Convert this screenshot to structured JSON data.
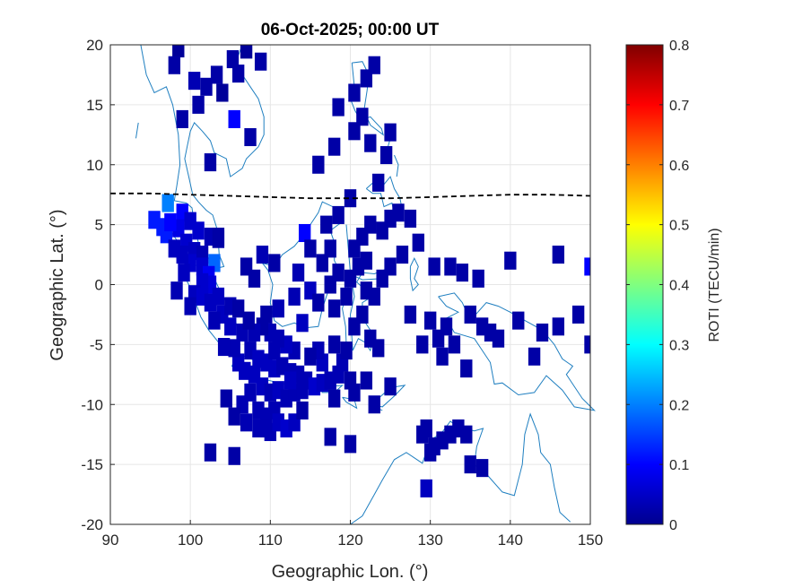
{
  "chart_data": {
    "type": "heatmap",
    "title": "06-Oct-2025; 00:00 UT",
    "xlabel": "Geographic Lon. (°)",
    "ylabel": "Geographic Lat. (°)",
    "xlim": [
      90,
      150
    ],
    "ylim": [
      -20,
      20
    ],
    "xticks": [
      "90",
      "100",
      "110",
      "120",
      "130",
      "140",
      "150"
    ],
    "yticks": [
      "-20",
      "-15",
      "-10",
      "-5",
      "0",
      "5",
      "10",
      "15",
      "20"
    ],
    "grid": true,
    "colormap": "jet",
    "colorbar": {
      "label": "ROTI (TECU/min)",
      "range": [
        0,
        0.8
      ],
      "ticks": [
        "0",
        "0.1",
        "0.2",
        "0.3",
        "0.4",
        "0.5",
        "0.6",
        "0.7",
        "0.8"
      ]
    },
    "dip_equator": [
      [
        90,
        7.6
      ],
      [
        95,
        7.6
      ],
      [
        100,
        7.5
      ],
      [
        105,
        7.4
      ],
      [
        110,
        7.3
      ],
      [
        115,
        7.2
      ],
      [
        120,
        7.2
      ],
      [
        125,
        7.2
      ],
      [
        130,
        7.3
      ],
      [
        135,
        7.4
      ],
      [
        140,
        7.5
      ],
      [
        145,
        7.5
      ],
      [
        150,
        7.4
      ]
    ],
    "cells": [
      [
        98.5,
        19.7,
        0.02
      ],
      [
        98.0,
        18.3,
        0.03
      ],
      [
        100.5,
        17.0,
        0.04
      ],
      [
        102.0,
        16.5,
        0.03
      ],
      [
        103.3,
        17.5,
        0.03
      ],
      [
        104.0,
        16.0,
        0.02
      ],
      [
        105.3,
        18.8,
        0.03
      ],
      [
        106.0,
        17.6,
        0.03
      ],
      [
        107.0,
        19.6,
        0.02
      ],
      [
        108.8,
        18.6,
        0.03
      ],
      [
        101.0,
        15.0,
        0.03
      ],
      [
        99.0,
        13.8,
        0.03
      ],
      [
        105.5,
        13.8,
        0.1
      ],
      [
        107.5,
        12.3,
        0.03
      ],
      [
        102.5,
        10.2,
        0.03
      ],
      [
        123.0,
        18.3,
        0.03
      ],
      [
        122.0,
        17.2,
        0.03
      ],
      [
        120.5,
        16.0,
        0.03
      ],
      [
        118.5,
        14.8,
        0.03
      ],
      [
        121.5,
        14.0,
        0.03
      ],
      [
        120.5,
        12.8,
        0.03
      ],
      [
        118.0,
        11.5,
        0.03
      ],
      [
        116.0,
        10.0,
        0.03
      ],
      [
        122.5,
        11.8,
        0.03
      ],
      [
        125.0,
        12.7,
        0.03
      ],
      [
        124.5,
        10.8,
        0.03
      ],
      [
        123.5,
        8.5,
        0.03
      ],
      [
        120.0,
        7.2,
        0.03
      ],
      [
        95.5,
        5.4,
        0.12
      ],
      [
        97.2,
        6.8,
        0.2
      ],
      [
        99.0,
        6.0,
        0.1
      ],
      [
        100.0,
        5.3,
        0.06
      ],
      [
        98.5,
        4.7,
        0.08
      ],
      [
        97.0,
        4.2,
        0.12
      ],
      [
        101.0,
        4.5,
        0.06
      ],
      [
        102.5,
        4.0,
        0.04
      ],
      [
        103.5,
        3.8,
        0.03
      ],
      [
        99.5,
        3.5,
        0.06
      ],
      [
        98.0,
        3.0,
        0.05
      ],
      [
        100.5,
        2.8,
        0.05
      ],
      [
        101.5,
        2.5,
        0.04
      ],
      [
        103.0,
        1.8,
        0.18
      ],
      [
        101.5,
        1.5,
        0.06
      ],
      [
        100.0,
        1.8,
        0.06
      ],
      [
        99.0,
        2.5,
        0.05
      ],
      [
        102.3,
        0.8,
        0.09
      ],
      [
        102.5,
        0.0,
        0.07
      ],
      [
        101.5,
        0.2,
        0.06
      ],
      [
        100.5,
        -0.8,
        0.05
      ],
      [
        100.0,
        -1.8,
        0.04
      ],
      [
        101.5,
        -1.0,
        0.06
      ],
      [
        102.5,
        -1.5,
        0.05
      ],
      [
        103.5,
        -1.0,
        0.05
      ],
      [
        104.0,
        -2.5,
        0.05
      ],
      [
        105.0,
        -1.8,
        0.04
      ],
      [
        106.0,
        -2.0,
        0.03
      ],
      [
        105.0,
        -3.5,
        0.05
      ],
      [
        106.5,
        -4.0,
        0.04
      ],
      [
        103.0,
        -3.0,
        0.04
      ],
      [
        107.5,
        -5.5,
        0.04
      ],
      [
        108.5,
        -6.2,
        0.05
      ],
      [
        109.5,
        -6.5,
        0.05
      ],
      [
        110.5,
        -7.0,
        0.05
      ],
      [
        111.5,
        -6.8,
        0.04
      ],
      [
        112.5,
        -7.3,
        0.04
      ],
      [
        113.5,
        -7.5,
        0.04
      ],
      [
        114.5,
        -8.0,
        0.04
      ],
      [
        115.5,
        -8.5,
        0.06
      ],
      [
        116.5,
        -8.2,
        0.05
      ],
      [
        117.5,
        -8.0,
        0.04
      ],
      [
        118.5,
        -7.5,
        0.04
      ],
      [
        119.0,
        -6.5,
        0.04
      ],
      [
        119.5,
        -5.5,
        0.03
      ],
      [
        118.0,
        -5.0,
        0.03
      ],
      [
        116.5,
        -6.5,
        0.05
      ],
      [
        116.0,
        -5.5,
        0.04
      ],
      [
        115.0,
        -6.0,
        0.03
      ],
      [
        113.0,
        -5.5,
        0.04
      ],
      [
        112.0,
        -5.0,
        0.05
      ],
      [
        111.0,
        -4.5,
        0.04
      ],
      [
        110.0,
        -4.0,
        0.04
      ],
      [
        109.0,
        -3.5,
        0.03
      ],
      [
        108.0,
        -4.0,
        0.04
      ],
      [
        106.0,
        -6.5,
        0.05
      ],
      [
        105.5,
        -5.3,
        0.04
      ],
      [
        106.8,
        -7.2,
        0.05
      ],
      [
        108.0,
        -7.5,
        0.05
      ],
      [
        109.0,
        -8.5,
        0.05
      ],
      [
        110.0,
        -9.0,
        0.04
      ],
      [
        111.0,
        -8.8,
        0.05
      ],
      [
        112.0,
        -9.5,
        0.04
      ],
      [
        113.0,
        -9.0,
        0.04
      ],
      [
        114.0,
        -8.8,
        0.04
      ],
      [
        110.5,
        -10.5,
        0.04
      ],
      [
        109.5,
        -11.0,
        0.04
      ],
      [
        108.5,
        -10.5,
        0.04
      ],
      [
        107.5,
        -9.0,
        0.04
      ],
      [
        106.5,
        -10.0,
        0.04
      ],
      [
        105.5,
        -11.0,
        0.03
      ],
      [
        107.0,
        -11.5,
        0.04
      ],
      [
        108.5,
        -12.0,
        0.04
      ],
      [
        110.0,
        -12.3,
        0.04
      ],
      [
        111.0,
        -11.5,
        0.05
      ],
      [
        112.0,
        -12.0,
        0.06
      ],
      [
        113.0,
        -11.5,
        0.05
      ],
      [
        114.0,
        -10.5,
        0.03
      ],
      [
        104.5,
        -9.5,
        0.03
      ],
      [
        102.5,
        -14.0,
        0.03
      ],
      [
        105.5,
        -14.3,
        0.03
      ],
      [
        117.5,
        -12.7,
        0.03
      ],
      [
        120.0,
        -13.3,
        0.03
      ],
      [
        114.0,
        -3.2,
        0.05
      ],
      [
        111.0,
        -2.0,
        0.04
      ],
      [
        109.5,
        -2.5,
        0.03
      ],
      [
        108.0,
        0.5,
        0.03
      ],
      [
        107.0,
        1.5,
        0.03
      ],
      [
        109.0,
        2.5,
        0.04
      ],
      [
        110.5,
        1.8,
        0.03
      ],
      [
        113.5,
        1.0,
        0.04
      ],
      [
        113.0,
        -1.0,
        0.04
      ],
      [
        115.0,
        -0.5,
        0.05
      ],
      [
        114.3,
        4.3,
        0.1
      ],
      [
        115.0,
        3.0,
        0.03
      ],
      [
        117.0,
        5.0,
        0.03
      ],
      [
        118.5,
        5.8,
        0.03
      ],
      [
        117.5,
        3.0,
        0.03
      ],
      [
        116.5,
        1.8,
        0.03
      ],
      [
        118.5,
        1.0,
        0.03
      ],
      [
        117.5,
        0.0,
        0.03
      ],
      [
        116.0,
        -1.5,
        0.03
      ],
      [
        118.0,
        -2.0,
        0.03
      ],
      [
        119.5,
        -1.0,
        0.03
      ],
      [
        120.0,
        0.5,
        0.03
      ],
      [
        121.0,
        1.5,
        0.03
      ],
      [
        122.0,
        2.0,
        0.03
      ],
      [
        120.5,
        3.0,
        0.03
      ],
      [
        121.5,
        4.0,
        0.03
      ],
      [
        122.5,
        5.0,
        0.03
      ],
      [
        124.0,
        4.5,
        0.03
      ],
      [
        125.0,
        5.5,
        0.03
      ],
      [
        126.0,
        6.0,
        0.03
      ],
      [
        127.5,
        5.5,
        0.03
      ],
      [
        128.5,
        3.5,
        0.03
      ],
      [
        126.5,
        2.5,
        0.03
      ],
      [
        125.0,
        1.5,
        0.03
      ],
      [
        124.0,
        0.5,
        0.03
      ],
      [
        122.0,
        -0.5,
        0.03
      ],
      [
        123.0,
        -1.0,
        0.03
      ],
      [
        121.5,
        -2.5,
        0.03
      ],
      [
        120.5,
        -3.5,
        0.03
      ],
      [
        122.5,
        -4.5,
        0.03
      ],
      [
        123.5,
        -5.3,
        0.03
      ],
      [
        125.0,
        -8.5,
        0.03
      ],
      [
        120.5,
        -9.0,
        0.03
      ],
      [
        118.0,
        -9.5,
        0.03
      ],
      [
        120.0,
        -8.0,
        0.03
      ],
      [
        122.0,
        -8.0,
        0.03
      ],
      [
        123.0,
        -10.0,
        0.03
      ],
      [
        127.5,
        -2.5,
        0.03
      ],
      [
        130.0,
        -3.0,
        0.03
      ],
      [
        129.0,
        -5.0,
        0.03
      ],
      [
        131.0,
        -4.5,
        0.03
      ],
      [
        132.0,
        -3.5,
        0.03
      ],
      [
        133.0,
        -5.0,
        0.03
      ],
      [
        131.5,
        -6.0,
        0.03
      ],
      [
        130.5,
        1.5,
        0.03
      ],
      [
        132.5,
        1.5,
        0.03
      ],
      [
        134.0,
        1.0,
        0.03
      ],
      [
        136.0,
        0.5,
        0.03
      ],
      [
        135.0,
        -2.5,
        0.03
      ],
      [
        136.5,
        -3.5,
        0.03
      ],
      [
        137.5,
        -4.0,
        0.03
      ],
      [
        138.5,
        -4.5,
        0.03
      ],
      [
        134.5,
        -7.0,
        0.03
      ],
      [
        140.0,
        2.0,
        0.03
      ],
      [
        146.0,
        2.5,
        0.03
      ],
      [
        141.0,
        -3.0,
        0.03
      ],
      [
        144.0,
        -4.0,
        0.03
      ],
      [
        146.0,
        -3.5,
        0.03
      ],
      [
        148.5,
        -2.5,
        0.03
      ],
      [
        143.0,
        -6.0,
        0.03
      ],
      [
        150.0,
        -5.0,
        0.03
      ],
      [
        150.0,
        1.5,
        0.1
      ],
      [
        129.5,
        -12.0,
        0.03
      ],
      [
        130.5,
        -13.5,
        0.03
      ],
      [
        131.5,
        -13.0,
        0.03
      ],
      [
        132.5,
        -12.5,
        0.03
      ],
      [
        133.5,
        -12.0,
        0.03
      ],
      [
        134.5,
        -12.5,
        0.03
      ],
      [
        130.0,
        -14.0,
        0.03
      ],
      [
        129.0,
        -12.5,
        0.03
      ],
      [
        135.0,
        -15.0,
        0.03
      ],
      [
        136.5,
        -15.3,
        0.03
      ],
      [
        129.5,
        -17.0,
        0.05
      ],
      [
        109.5,
        -12.0,
        0.04
      ],
      [
        103.5,
        4.0,
        0.03
      ],
      [
        98.3,
        -0.5,
        0.04
      ],
      [
        96.5,
        4.8,
        0.12
      ],
      [
        97.5,
        5.2,
        0.1
      ],
      [
        99.2,
        1.0,
        0.05
      ],
      [
        104.2,
        -5.2,
        0.04
      ],
      [
        107.3,
        -3.0,
        0.03
      ],
      [
        110.5,
        -5.5,
        0.04
      ],
      [
        112.5,
        -8.0,
        0.05
      ]
    ]
  }
}
